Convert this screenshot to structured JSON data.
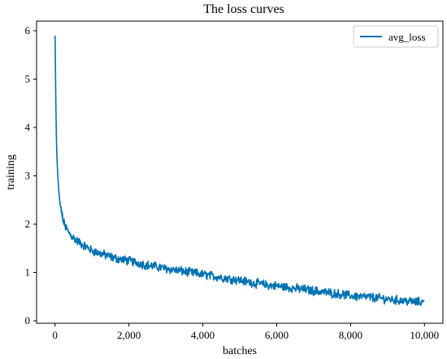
{
  "chart_data": {
    "type": "line",
    "title": "The loss curves",
    "xlabel": "batches",
    "ylabel": "training",
    "xlim": [
      -500,
      10500
    ],
    "ylim": [
      -0.05,
      6.2
    ],
    "x_ticks": [
      0,
      2000,
      4000,
      6000,
      8000,
      10000
    ],
    "x_tick_labels": [
      "0",
      "2,000",
      "4,000",
      "6,000",
      "8,000",
      "10,000"
    ],
    "y_ticks": [
      0,
      1,
      2,
      3,
      4,
      5,
      6
    ],
    "y_tick_labels": [
      "0",
      "1",
      "2",
      "3",
      "4",
      "5",
      "6"
    ],
    "grid": false,
    "legend_position": "top-right",
    "colors": {
      "series": "#0072b2"
    },
    "series": [
      {
        "name": "avg_loss",
        "x": [
          0,
          10,
          20,
          30,
          40,
          50,
          75,
          100,
          125,
          150,
          175,
          200,
          250,
          300,
          350,
          400,
          450,
          500,
          600,
          700,
          800,
          900,
          1000,
          1200,
          1400,
          1600,
          1800,
          2000,
          2250,
          2500,
          2750,
          3000,
          3250,
          3500,
          3750,
          4000,
          4250,
          4500,
          4750,
          5000,
          5250,
          5500,
          5750,
          6000,
          6250,
          6500,
          6750,
          7000,
          7250,
          7500,
          7750,
          8000,
          8250,
          8500,
          8750,
          9000,
          9250,
          9500,
          9750,
          10000
        ],
        "values": [
          5.9,
          5.3,
          4.6,
          4.1,
          3.7,
          3.4,
          3.0,
          2.7,
          2.5,
          2.35,
          2.25,
          2.15,
          2.0,
          1.92,
          1.85,
          1.8,
          1.75,
          1.72,
          1.65,
          1.6,
          1.55,
          1.5,
          1.45,
          1.4,
          1.35,
          1.3,
          1.27,
          1.24,
          1.2,
          1.15,
          1.12,
          1.08,
          1.05,
          1.02,
          0.99,
          0.96,
          0.93,
          0.9,
          0.87,
          0.84,
          0.8,
          0.77,
          0.74,
          0.72,
          0.7,
          0.67,
          0.65,
          0.62,
          0.6,
          0.57,
          0.55,
          0.52,
          0.5,
          0.49,
          0.47,
          0.45,
          0.43,
          0.41,
          0.39,
          0.38
        ]
      }
    ]
  }
}
